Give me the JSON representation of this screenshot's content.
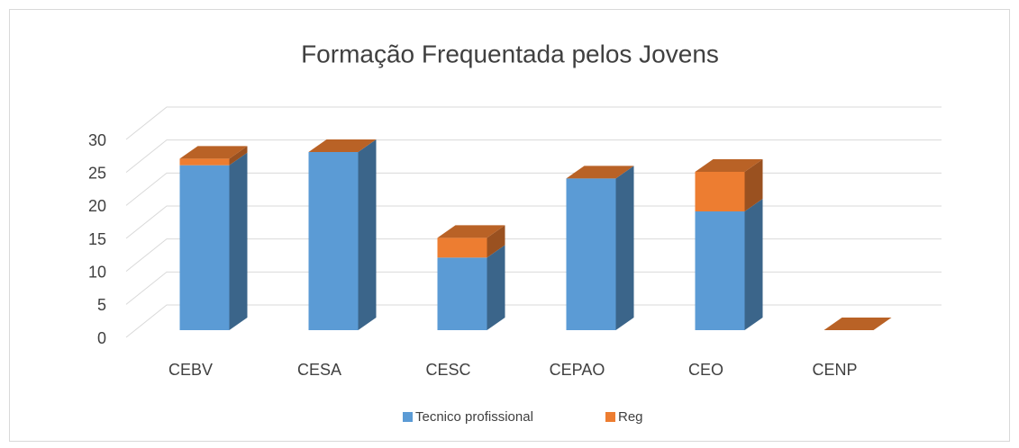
{
  "chart_data": {
    "type": "bar3d_stacked",
    "title": "Formação Frequentada pelos Jovens",
    "categories": [
      "CEBV",
      "CESA",
      "CESC",
      "CEPAO",
      "CEO",
      "CENP"
    ],
    "series": [
      {
        "name": "Tecnico profissional",
        "color": "#5b9bd5",
        "values": [
          25,
          27,
          11,
          23,
          18,
          0
        ]
      },
      {
        "name": "Reg",
        "color": "#ed7d31",
        "values": [
          1,
          0,
          3,
          0,
          6,
          0
        ]
      }
    ],
    "ylim": [
      0,
      30
    ],
    "yticks": [
      0,
      5,
      10,
      15,
      20,
      25,
      30
    ],
    "grid": true,
    "legend": "bottom"
  }
}
